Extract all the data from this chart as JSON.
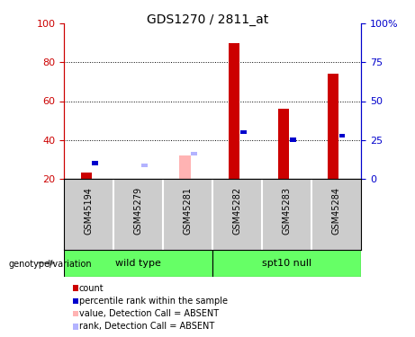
{
  "title": "GDS1270 / 2811_at",
  "samples": [
    "GSM45194",
    "GSM45279",
    "GSM45281",
    "GSM45282",
    "GSM45283",
    "GSM45284"
  ],
  "ylim_left": [
    20,
    100
  ],
  "ylim_right": [
    0,
    100
  ],
  "yticks_left": [
    20,
    40,
    60,
    80,
    100
  ],
  "yticks_right": [
    0,
    25,
    50,
    75,
    100
  ],
  "ytick_labels_right": [
    "0",
    "25",
    "50",
    "75",
    "100%"
  ],
  "bars_red": {
    "GSM45194": 23,
    "GSM45279": 20,
    "GSM45281": 20,
    "GSM45282": 90,
    "GSM45283": 56,
    "GSM45284": 74
  },
  "bars_red_absent": {
    "GSM45281": 32
  },
  "bars_blue": {
    "GSM45194": 28,
    "GSM45282": 44,
    "GSM45283": 40,
    "GSM45284": 42
  },
  "bars_blue_absent": {
    "GSM45279": 27,
    "GSM45281": 33
  },
  "legend_items": [
    {
      "label": "count",
      "color": "#cc0000"
    },
    {
      "label": "percentile rank within the sample",
      "color": "#0000cc"
    },
    {
      "label": "value, Detection Call = ABSENT",
      "color": "#ffb3b3"
    },
    {
      "label": "rank, Detection Call = ABSENT",
      "color": "#b3b3ff"
    }
  ],
  "left_axis_color": "#cc0000",
  "right_axis_color": "#0000cc",
  "bg_samples": "#cccccc",
  "bg_groups": "#66ff66",
  "wt_samples": [
    "GSM45194",
    "GSM45279",
    "GSM45281"
  ],
  "spt_samples": [
    "GSM45282",
    "GSM45283",
    "GSM45284"
  ],
  "wt_label": "wild type",
  "spt_label": "spt10 null",
  "genotype_label": "genotype/variation"
}
